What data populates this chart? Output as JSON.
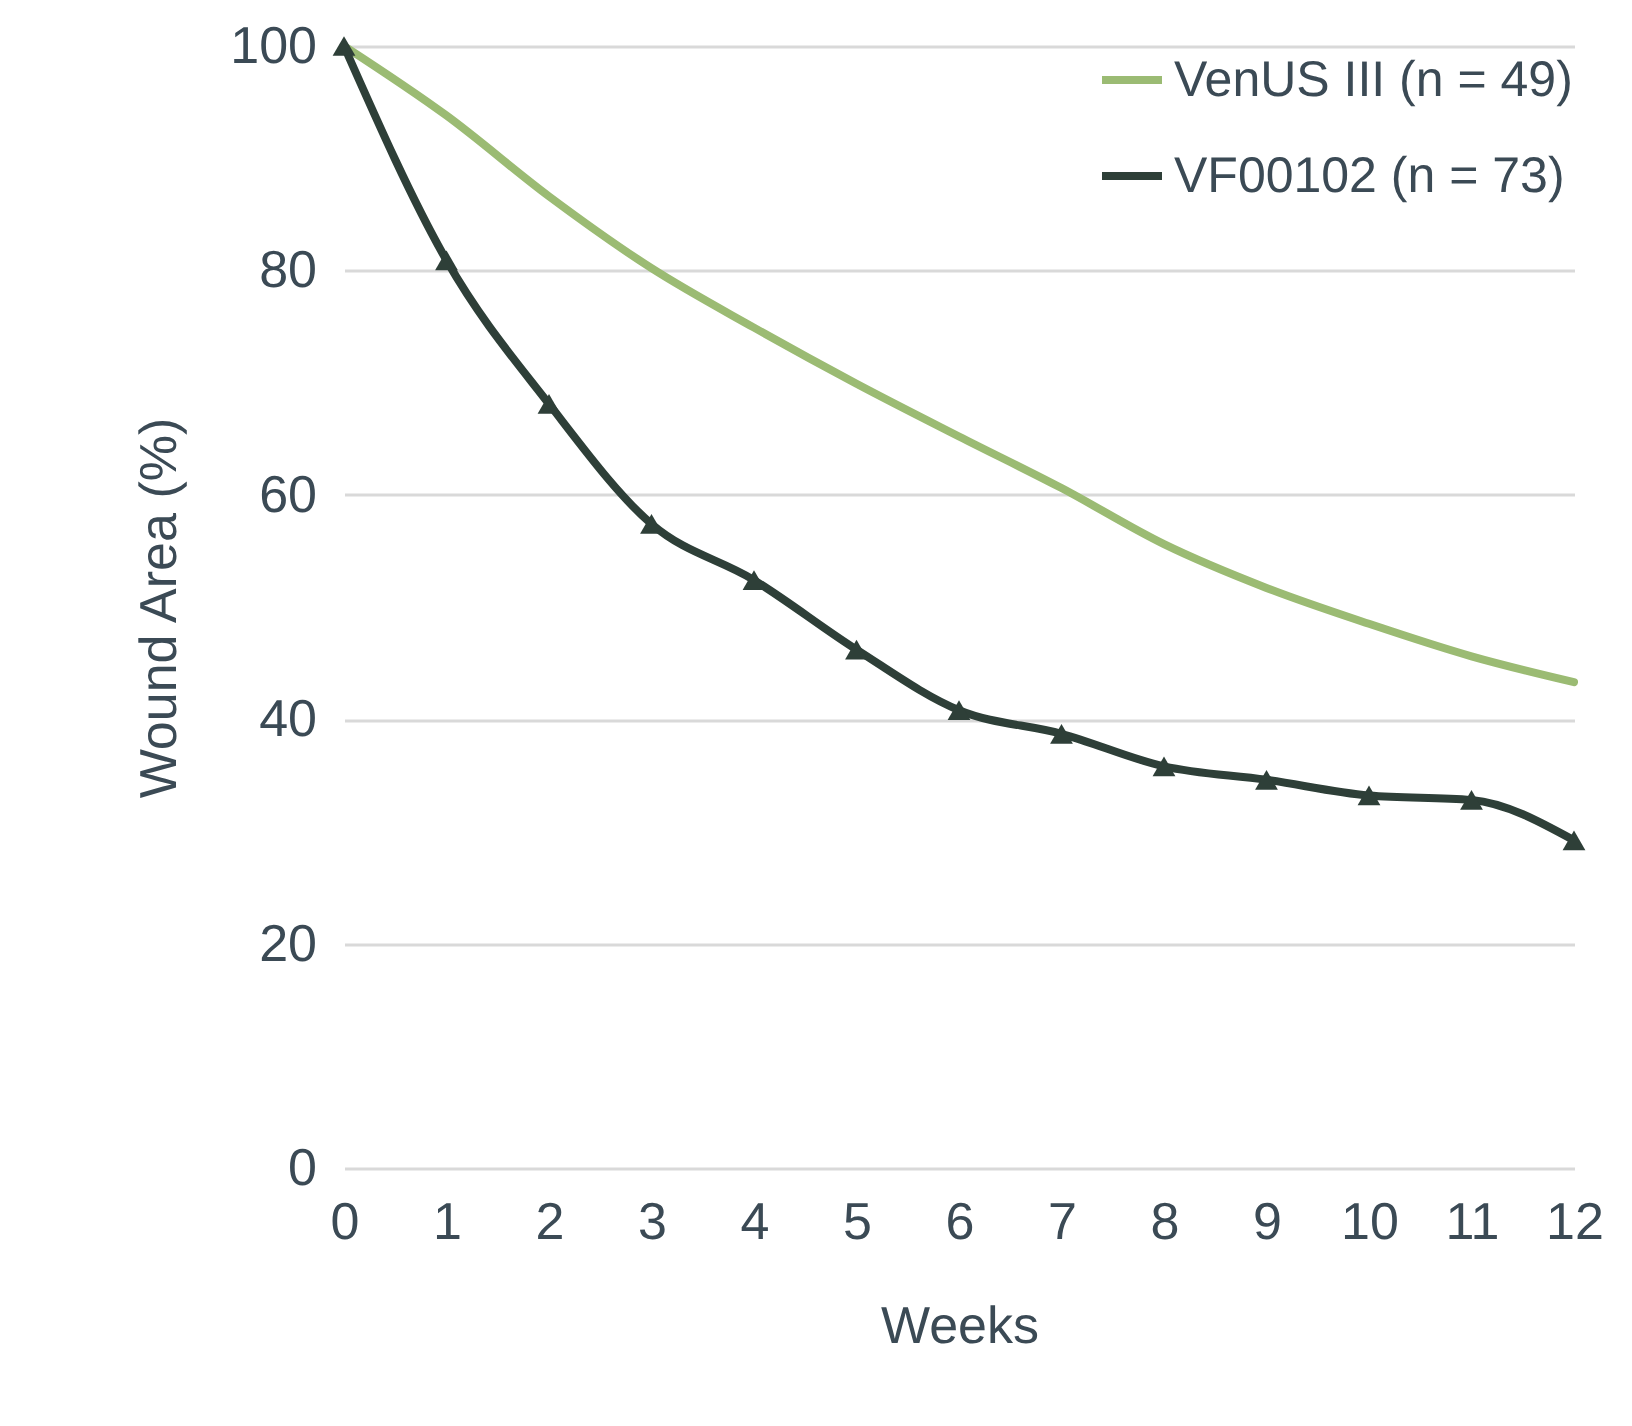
{
  "chart_data": {
    "type": "line",
    "xlabel": "Weeks",
    "ylabel": "Wound Area (%)",
    "x": [
      0,
      1,
      2,
      3,
      4,
      5,
      6,
      7,
      8,
      9,
      10,
      11,
      12
    ],
    "series": [
      {
        "name": "VenUS III (n = 49)",
        "color": "#9bbb73",
        "values": [
          100,
          93.8,
          86.6,
          80.2,
          74.9,
          69.9,
          65.2,
          60.6,
          55.6,
          51.7,
          48.5,
          45.6,
          43.3
        ]
      },
      {
        "name": "VF00102 (n = 73)",
        "color": "#2e3f38",
        "marker": "triangle",
        "values": [
          100,
          80.9,
          68.1,
          57.4,
          52.4,
          46.2,
          40.8,
          38.7,
          35.8,
          34.6,
          33.2,
          32.8,
          29.2
        ]
      }
    ],
    "xlim": [
      0,
      12
    ],
    "xticks": [
      0,
      1,
      2,
      3,
      4,
      5,
      6,
      7,
      8,
      9,
      10,
      11,
      12
    ],
    "ylim": [
      0,
      100
    ],
    "yticks": [
      0,
      20,
      40,
      60,
      80,
      100
    ],
    "grid": "y",
    "legend": "top right"
  }
}
